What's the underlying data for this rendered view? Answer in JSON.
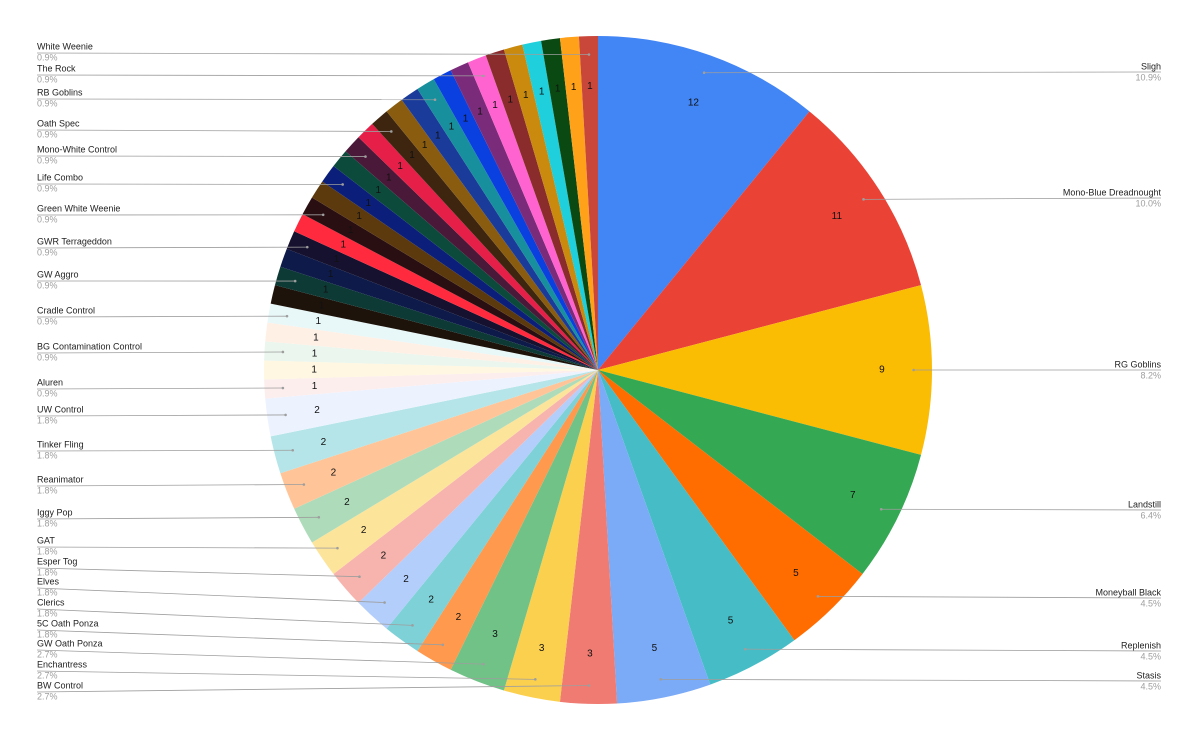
{
  "chart_data": {
    "type": "pie",
    "categories": [
      "Sligh",
      "Mono-Blue Dreadnought",
      "RG Goblins",
      "Landstill",
      "Moneyball Black",
      "Replenish",
      "Stasis",
      "BW Control",
      "Enchantress",
      "GW Oath Ponza",
      "5C Oath Ponza",
      "Clerics",
      "Elves",
      "Esper Tog",
      "GAT",
      "Iggy Pop",
      "Reanimator",
      "Tinker Fling",
      "UW Control",
      "Aluren",
      null,
      "BG Contamination Control",
      null,
      "Cradle Control",
      null,
      "GW Aggro",
      null,
      "GWR Terrageddon",
      null,
      "Green White Weenie",
      null,
      "Life Combo",
      null,
      "Mono-White Control",
      null,
      "Oath Spec",
      null,
      null,
      "RB Goblins",
      null,
      null,
      "The Rock",
      null,
      null,
      null,
      null,
      null,
      "White Weenie"
    ],
    "values": [
      12,
      11,
      9,
      7,
      5,
      5,
      5,
      3,
      3,
      3,
      2,
      2,
      2,
      2,
      2,
      2,
      2,
      2,
      2,
      1,
      1,
      1,
      1,
      1,
      1,
      1,
      1,
      1,
      1,
      1,
      1,
      1,
      1,
      1,
      1,
      1,
      1,
      1,
      1,
      1,
      1,
      1,
      1,
      1,
      1,
      1,
      1,
      1
    ],
    "percent_labels": [
      "10.9%",
      "10.0%",
      "8.2%",
      "6.4%",
      "4.5%",
      "4.5%",
      "4.5%",
      "2.7%",
      "2.7%",
      "2.7%",
      "1.8%",
      "1.8%",
      "1.8%",
      "1.8%",
      "1.8%",
      "1.8%",
      "1.8%",
      "1.8%",
      "1.8%",
      "0.9%",
      null,
      "0.9%",
      null,
      "0.9%",
      null,
      "0.9%",
      null,
      "0.9%",
      null,
      "0.9%",
      null,
      "0.9%",
      null,
      "0.9%",
      null,
      "0.9%",
      null,
      null,
      "0.9%",
      null,
      null,
      "0.9%",
      null,
      null,
      null,
      null,
      null,
      "0.9%"
    ],
    "colors": [
      "#4285f4",
      "#ea4335",
      "#fbbc04",
      "#34a853",
      "#ff6d01",
      "#46bdc6",
      "#7baaf7",
      "#f07b72",
      "#fcd04f",
      "#71c287",
      "#ff994d",
      "#7ed1d7",
      "#b3cefb",
      "#f7b4ae",
      "#fde49b",
      "#aedcba",
      "#ffc599",
      "#b5e5e8",
      "#ecf3fe",
      "#fdeeee",
      "#fff7e1",
      "#ebf6ee",
      "#fff0e6",
      "#e8f7f8",
      "#1e130a",
      "#0e3a36",
      "#0d1a4a",
      "#15112e",
      "#ff2a3e",
      "#2a0f12",
      "#5c3a0e",
      "#0b1f7a",
      "#0c4a3c",
      "#4a1838",
      "#e51f48",
      "#3d2510",
      "#8a5c10",
      "#1b3b9a",
      "#178f9c",
      "#0a3fe0",
      "#7a2b7a",
      "#ff63cf",
      "#8a2c2c",
      "#c98a0e",
      "#1fcfdc",
      "#0a4a12",
      "#ffa21a",
      "#c8463a"
    ]
  }
}
